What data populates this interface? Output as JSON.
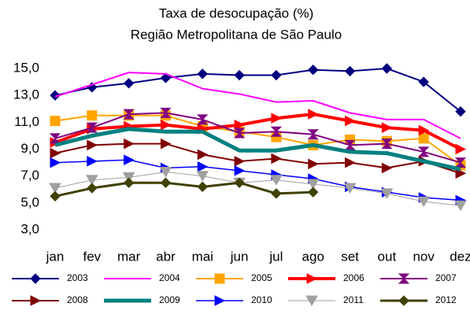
{
  "chart_data": {
    "type": "line",
    "title": "Taxa de desocupação (%)",
    "subtitle": "Região Metropolitana de São Paulo",
    "categories": [
      "jan",
      "fev",
      "mar",
      "abr",
      "mai",
      "jun",
      "jul",
      "ago",
      "set",
      "out",
      "nov",
      "dez"
    ],
    "ylim": [
      3,
      15
    ],
    "yticks": [
      {
        "value": 3,
        "label": "3,0"
      },
      {
        "value": 5,
        "label": "5,0"
      },
      {
        "value": 7,
        "label": "7,0"
      },
      {
        "value": 9,
        "label": "9,0"
      },
      {
        "value": 11,
        "label": "11,0"
      },
      {
        "value": 13,
        "label": "13,0"
      },
      {
        "value": 15,
        "label": "15,0"
      }
    ],
    "grid": false,
    "legend": "bottom",
    "series": [
      {
        "name": "2003",
        "color": "#000080",
        "marker": "diamond",
        "line_width": 2,
        "values": [
          13.0,
          13.6,
          13.9,
          14.3,
          14.6,
          14.5,
          14.5,
          14.9,
          14.8,
          15.0,
          14.0,
          11.8
        ]
      },
      {
        "name": "2004",
        "color": "#ff00ff",
        "marker": "none",
        "line_width": 2,
        "values": [
          12.9,
          13.8,
          14.7,
          14.6,
          13.5,
          13.1,
          12.5,
          12.6,
          11.7,
          11.2,
          11.2,
          9.8
        ]
      },
      {
        "name": "2005",
        "color": "#ffa500",
        "marker": "square",
        "line_width": 2,
        "values": [
          11.1,
          11.5,
          11.5,
          11.5,
          10.7,
          10.3,
          9.9,
          9.3,
          9.7,
          9.6,
          9.8,
          7.8
        ]
      },
      {
        "name": "2006",
        "color": "#ff0000",
        "marker": "triangle-right",
        "line_width": 4,
        "values": [
          9.5,
          10.5,
          10.7,
          10.8,
          10.5,
          10.8,
          11.3,
          11.6,
          11.1,
          10.6,
          10.4,
          9.0
        ]
      },
      {
        "name": "2007",
        "color": "#800080",
        "marker": "hourglass",
        "line_width": 2,
        "values": [
          9.8,
          10.6,
          11.6,
          11.7,
          11.2,
          10.2,
          10.3,
          10.1,
          9.3,
          9.4,
          8.8,
          8.0
        ]
      },
      {
        "name": "2008",
        "color": "#800000",
        "marker": "triangle-right",
        "line_width": 2,
        "values": [
          8.7,
          9.3,
          9.4,
          9.4,
          8.6,
          8.1,
          8.3,
          7.9,
          8.0,
          7.6,
          8.1,
          7.2
        ]
      },
      {
        "name": "2009",
        "color": "#008080",
        "marker": "none",
        "line_width": 5,
        "values": [
          9.3,
          10.0,
          10.5,
          10.3,
          10.3,
          8.9,
          8.9,
          9.3,
          8.8,
          8.7,
          8.1,
          7.5
        ]
      },
      {
        "name": "2010",
        "color": "#0000ff",
        "marker": "triangle-right",
        "line_width": 1.5,
        "values": [
          8.0,
          8.1,
          8.2,
          7.6,
          7.7,
          7.4,
          7.1,
          6.8,
          6.2,
          5.8,
          5.4,
          5.2
        ]
      },
      {
        "name": "2011",
        "color": "#a0a0a0",
        "marker": "triangle-down",
        "line_width": 1,
        "values": [
          6.1,
          6.7,
          6.9,
          7.3,
          7.0,
          6.5,
          6.7,
          6.4,
          6.1,
          5.7,
          5.1,
          4.8
        ]
      },
      {
        "name": "2012",
        "color": "#404000",
        "marker": "diamond",
        "line_width": 3,
        "values": [
          5.5,
          6.1,
          6.5,
          6.5,
          6.2,
          6.5,
          5.7,
          5.8,
          null,
          null,
          null,
          null
        ]
      }
    ]
  }
}
